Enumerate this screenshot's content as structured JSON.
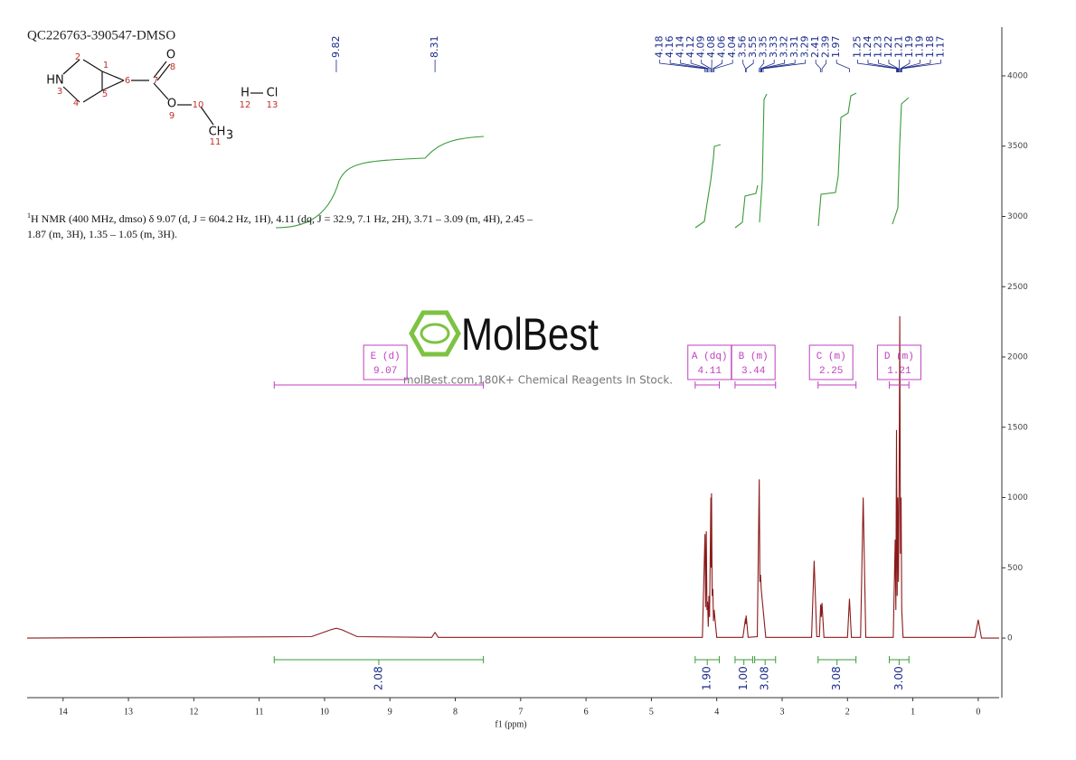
{
  "sample_id": "QC226763-390547-DMSO",
  "structure": {
    "atoms": [
      "2",
      "1",
      "HN",
      "3",
      "6",
      "7",
      "O",
      "8",
      "5",
      "4",
      "O",
      "9",
      "10",
      "CH",
      "3",
      "11",
      "H",
      "12",
      "Cl",
      "13"
    ]
  },
  "nmr_text": {
    "sup": "1",
    "text": "H NMR (400 MHz, dmso) δ 9.07 (d, J = 604.2 Hz, 1H), 4.11 (dq, J = 32.9, 7.1 Hz, 2H), 3.71 – 3.09 (m, 4H), 2.45 – 1.87 (m, 3H), 1.35 – 1.05 (m, 3H)."
  },
  "watermark": {
    "brand": "MolBest",
    "tagline": "molBest.com,180K+ Chemical Reagents In Stock."
  },
  "chart_data": {
    "type": "line",
    "x_label": "f1 (ppm)",
    "color": "#8b1a1a",
    "x": [
      14.55,
      10.2,
      9.9,
      9.82,
      9.74,
      9.5,
      8.36,
      8.31,
      8.26,
      4.22,
      4.18,
      4.17,
      4.16,
      4.15,
      4.14,
      4.13,
      4.12,
      4.11,
      4.09,
      4.085,
      4.08,
      4.07,
      4.06,
      4.05,
      4.04,
      4.0,
      3.6,
      3.56,
      3.555,
      3.55,
      3.52,
      3.38,
      3.35,
      3.34,
      3.33,
      3.32,
      3.31,
      3.3,
      3.29,
      3.25,
      2.55,
      2.51,
      2.47,
      2.43,
      2.41,
      2.4,
      2.39,
      2.36,
      2.0,
      1.97,
      1.94,
      1.8,
      1.76,
      1.72,
      1.3,
      1.27,
      1.26,
      1.25,
      1.24,
      1.23,
      1.22,
      1.21,
      1.2,
      1.19,
      1.18,
      1.17,
      1.15,
      0.05,
      0.0,
      -0.05,
      -0.32
    ],
    "values": [
      0,
      10,
      60,
      70,
      60,
      10,
      5,
      40,
      5,
      5,
      740,
      220,
      760,
      200,
      260,
      80,
      300,
      150,
      1000,
      500,
      1030,
      300,
      350,
      120,
      200,
      5,
      5,
      140,
      100,
      160,
      5,
      10,
      1130,
      400,
      450,
      350,
      300,
      250,
      200,
      5,
      5,
      550,
      10,
      10,
      240,
      150,
      250,
      5,
      5,
      280,
      5,
      5,
      1000,
      5,
      5,
      700,
      200,
      1480,
      300,
      1000,
      400,
      1100,
      2290,
      600,
      1000,
      200,
      5,
      5,
      130,
      0,
      0
    ],
    "xlim": [
      14.55,
      -0.32
    ],
    "xticks": [
      14,
      13,
      12,
      11,
      10,
      9,
      8,
      7,
      6,
      5,
      4,
      3,
      2,
      1,
      0
    ],
    "ylim": [
      -424,
      4347
    ],
    "yticks": [
      0,
      500,
      1000,
      1500,
      2000,
      2500,
      3000,
      3500,
      4000
    ],
    "peak_labels": [
      9.82,
      8.31,
      4.18,
      4.16,
      4.14,
      4.12,
      4.09,
      4.08,
      4.06,
      4.04,
      3.56,
      3.55,
      3.35,
      3.33,
      3.32,
      3.31,
      3.29,
      2.41,
      2.39,
      1.97,
      1.25,
      1.24,
      1.23,
      1.22,
      1.21,
      1.19,
      1.19,
      1.18,
      1.17
    ],
    "multiplets": [
      {
        "label": "E (d)",
        "shift": 9.07,
        "from": 10.77,
        "to": 7.57
      },
      {
        "label": "A (dq)",
        "shift": 4.11,
        "from": 4.33,
        "to": 3.96
      },
      {
        "label": "B (m)",
        "shift": 3.44,
        "from": 3.72,
        "to": 3.1
      },
      {
        "label": "C (m)",
        "shift": 2.25,
        "from": 2.45,
        "to": 1.87
      },
      {
        "label": "D (m)",
        "shift": 1.21,
        "from": 1.36,
        "to": 1.06
      }
    ],
    "integrals": [
      {
        "from": 10.77,
        "to": 7.57,
        "value": 2.08
      },
      {
        "from": 4.33,
        "to": 3.96,
        "value": 1.9,
        "label": "1.90"
      },
      {
        "from": 3.72,
        "to": 3.45,
        "value": 1.0,
        "label": "1.00"
      },
      {
        "from": 3.42,
        "to": 3.1,
        "value": 3.08
      },
      {
        "from": 2.45,
        "to": 1.87,
        "value": 3.08
      },
      {
        "from": 1.36,
        "to": 1.06,
        "value": 3.0,
        "label": "3.00"
      }
    ]
  }
}
